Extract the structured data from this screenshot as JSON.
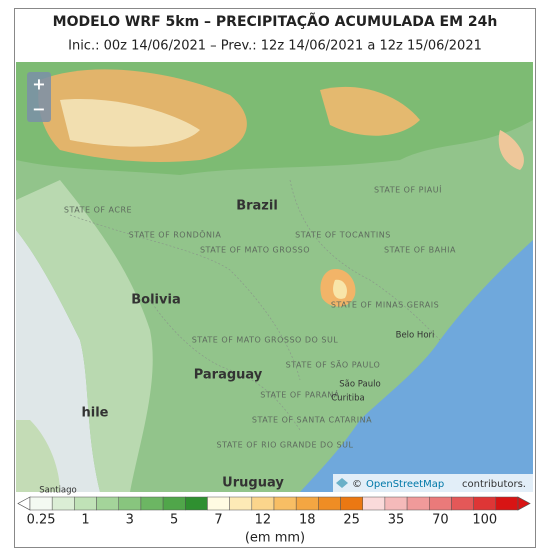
{
  "header": {
    "title": "MODELO WRF 5km – PRECIPITAÇÃO ACUMULADA EM 24h",
    "subtitle": "Inic.: 00z 14/06/2021 – Prev.: 12z 14/06/2021 a 12z 15/06/2021"
  },
  "controls": {
    "zoom_in": "+",
    "zoom_out": "−"
  },
  "map": {
    "labels": [
      "Brazil",
      "Bolivia",
      "Paraguay",
      "Uruguay",
      "hile",
      "STATE OF ACRE",
      "STATE OF RONDÔNIA",
      "STATE OF MATO GROSSO",
      "STATE OF TOCANTINS",
      "STATE OF PIAUÍ",
      "STATE OF BAHIA",
      "STATE OF MINAS GERAIS",
      "STATE OF MATO GROSSO DO SUL",
      "STATE OF SÃO PAULO",
      "STATE OF PARANÁ",
      "STATE OF SANTA CATARINA",
      "STATE OF RIO GRANDE DO SUL",
      "São Paulo",
      "Curitiba",
      "Belo Hori",
      "Santiago"
    ],
    "attribution": {
      "prefix": "©",
      "link": "OpenStreetMap",
      "suffix": "contributors."
    }
  },
  "legend": {
    "ticks": [
      0.25,
      1,
      3,
      5,
      7,
      12,
      18,
      25,
      35,
      70,
      100
    ],
    "unit": "(em mm)",
    "colors": [
      "#f4faf2",
      "#dbeed5",
      "#c0e2b7",
      "#a4d49a",
      "#88c57e",
      "#6cb663",
      "#50a64a",
      "#2f9030",
      "#fffbe2",
      "#fdeab6",
      "#fbd58c",
      "#f8be64",
      "#f4a642",
      "#ef8d24",
      "#eb7812",
      "#fadada",
      "#f5baba",
      "#f09a9a",
      "#ea7a7a",
      "#e45858",
      "#de3636",
      "#d81414"
    ]
  }
}
